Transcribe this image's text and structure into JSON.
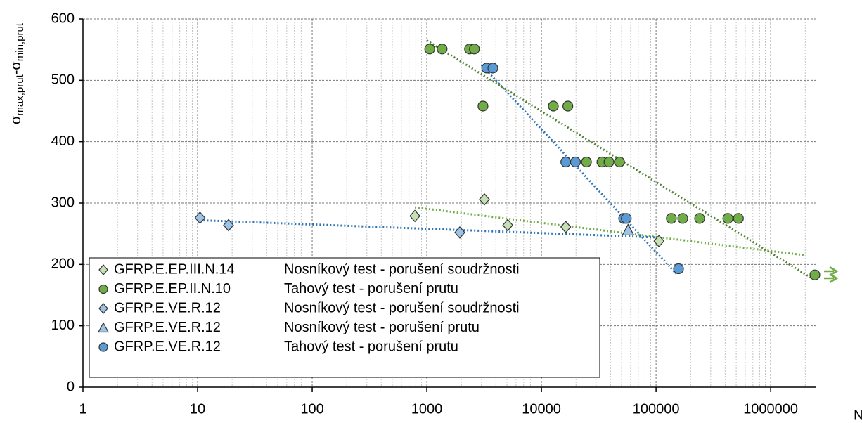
{
  "chart_data": {
    "type": "scatter",
    "xlabel": "N",
    "ylabel": [
      "σ",
      "max,prut",
      "-σ",
      "min,prut"
    ],
    "xlog": true,
    "xlim": [
      1,
      2500000
    ],
    "xticks": [
      1,
      10,
      100,
      1000,
      10000,
      100000,
      1000000
    ],
    "ylim": [
      0,
      600
    ],
    "yticks": [
      0,
      100,
      200,
      300,
      400,
      500,
      600
    ],
    "grid": true,
    "legend": "lower left",
    "series": [
      {
        "name": "GFRP.E.EP.III.N.14",
        "description": "Nosníkový test - porušení soudržnosti",
        "marker": "diamond",
        "color": "#c5e0b4",
        "x": [
          787,
          3180,
          5080,
          16300,
          106000
        ],
        "values": [
          279,
          306,
          264,
          261,
          238
        ],
        "trend_color": "#70ad47",
        "trend_x": [
          787,
          2000000
        ],
        "trend_y": [
          293,
          215
        ]
      },
      {
        "name": "GFRP.E.EP.II.N.10",
        "description": "Tahový test - porušení prutu",
        "marker": "circle",
        "color": "#70ad47",
        "x": [
          1060,
          1360,
          2360,
          2600,
          3090,
          12700,
          17000,
          24700,
          33700,
          38800,
          48000,
          136000,
          171000,
          240000,
          423000,
          523000,
          2430000
        ],
        "values": [
          551,
          551,
          551,
          551,
          458,
          458,
          458,
          367,
          367,
          367,
          367,
          275,
          275,
          275,
          275,
          275,
          183
        ],
        "trend_color": "#548235",
        "trend_x": [
          1000,
          2400000
        ],
        "trend_y": [
          565,
          175
        ]
      },
      {
        "name": "GFRP.E.VE.R.12",
        "description": "Nosníkový test - porušení soudržnosti",
        "marker": "diamond",
        "color": "#9dc3e6",
        "x": [
          10.5,
          18.6,
          1940
        ],
        "values": [
          276,
          264,
          252
        ],
        "trend_color": "#2e75b6",
        "trend_x": [
          10.5,
          100000
        ],
        "trend_y": [
          272,
          244
        ]
      },
      {
        "name": "GFRP.E.VE.R.12",
        "description": "Nosníkový test - porušení prutu",
        "marker": "triangle",
        "color": "#9dc3e6",
        "x": [
          57000
        ],
        "values": [
          256
        ]
      },
      {
        "name": "GFRP.E.VE.R.12",
        "description": "Tahový test - porušení prutu",
        "marker": "circle",
        "color": "#5b9bd5",
        "x": [
          3330,
          3770,
          16300,
          19800,
          52200,
          55000,
          157000
        ],
        "values": [
          520,
          520,
          367,
          367,
          275,
          275,
          193
        ],
        "trend_color": "#2e75b6",
        "trend_x": [
          3000,
          150000
        ],
        "trend_y": [
          525,
          185
        ]
      }
    ]
  }
}
